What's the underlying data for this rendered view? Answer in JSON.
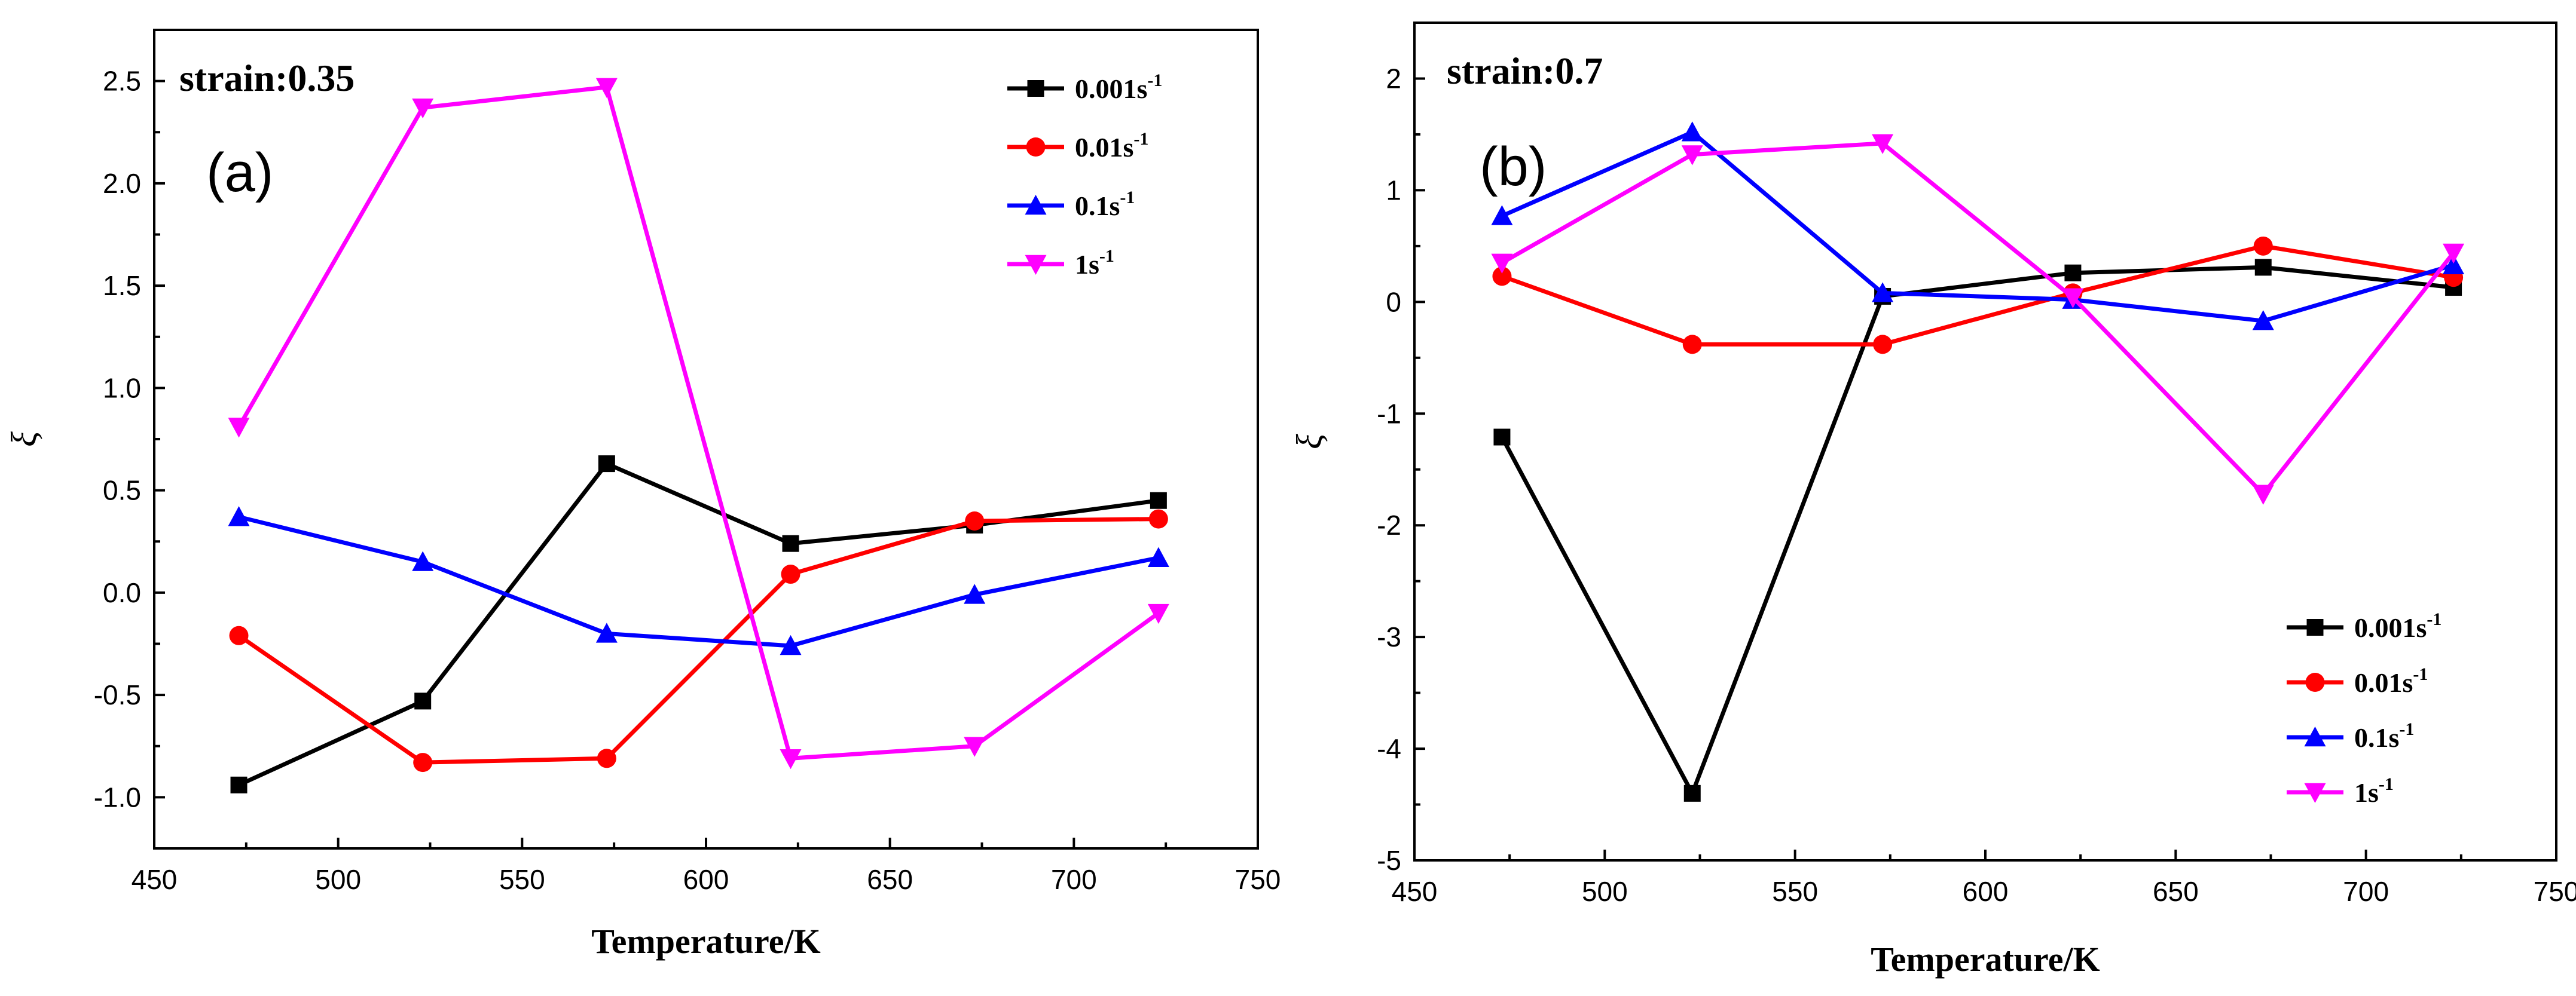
{
  "chart_data": [
    {
      "type": "line",
      "title": "strain:0.35",
      "panel_label": "(a)",
      "xlabel": "Temperature/K",
      "ylabel": "ξ",
      "xlim": [
        450,
        750
      ],
      "ylim": [
        -1.25,
        2.75
      ],
      "xticks": [
        450,
        500,
        550,
        600,
        650,
        700,
        750
      ],
      "yticks": [
        -1.0,
        -0.5,
        0.0,
        0.5,
        1.0,
        1.5,
        2.0,
        2.5
      ],
      "ytick_labels": [
        "-1.0",
        "-0.5",
        "0.0",
        "0.5",
        "1.0",
        "1.5",
        "2.0",
        "2.5"
      ],
      "legend_position": "top-right",
      "x": [
        473,
        523,
        573,
        623,
        673,
        723
      ],
      "series": [
        {
          "name": "0.001s",
          "sup": "-1",
          "color": "#000000",
          "marker": "square",
          "values": [
            -0.94,
            -0.53,
            0.63,
            0.24,
            0.33,
            0.45
          ]
        },
        {
          "name": "0.01s",
          "sup": "-1",
          "color": "#ff0000",
          "marker": "circle",
          "values": [
            -0.21,
            -0.83,
            -0.81,
            0.09,
            0.35,
            0.36
          ]
        },
        {
          "name": "0.1s",
          "sup": "-1",
          "color": "#0000ff",
          "marker": "triangle-up",
          "values": [
            0.37,
            0.15,
            -0.2,
            -0.26,
            -0.01,
            0.17
          ]
        },
        {
          "name": "1s",
          "sup": "-1",
          "color": "#ff00ff",
          "marker": "triangle-down",
          "values": [
            0.81,
            2.37,
            2.47,
            -0.81,
            -0.75,
            -0.1
          ]
        }
      ]
    },
    {
      "type": "line",
      "title": "strain:0.7",
      "panel_label": "(b)",
      "xlabel": "Temperature/K",
      "ylabel": "ξ",
      "xlim": [
        450,
        750
      ],
      "ylim": [
        -5,
        2.5
      ],
      "xticks": [
        450,
        500,
        550,
        600,
        650,
        700,
        750
      ],
      "yticks": [
        -5,
        -4,
        -3,
        -2,
        -1,
        0,
        1,
        2
      ],
      "ytick_labels": [
        "-5",
        "-4",
        "-3",
        "-2",
        "-1",
        "0",
        "1",
        "2"
      ],
      "legend_position": "bottom-right",
      "x": [
        473,
        523,
        573,
        623,
        673,
        723
      ],
      "series": [
        {
          "name": "0.001s",
          "sup": "-1",
          "color": "#000000",
          "marker": "square",
          "values": [
            -1.21,
            -4.4,
            0.05,
            0.26,
            0.31,
            0.13
          ]
        },
        {
          "name": "0.01s",
          "sup": "-1",
          "color": "#ff0000",
          "marker": "circle",
          "values": [
            0.23,
            -0.38,
            -0.38,
            0.08,
            0.5,
            0.22
          ]
        },
        {
          "name": "0.1s",
          "sup": "-1",
          "color": "#0000ff",
          "marker": "triangle-up",
          "values": [
            0.77,
            1.52,
            0.08,
            0.02,
            -0.17,
            0.33
          ]
        },
        {
          "name": "1s",
          "sup": "-1",
          "color": "#ff00ff",
          "marker": "triangle-down",
          "values": [
            0.35,
            1.32,
            1.42,
            0.04,
            -1.72,
            0.44
          ]
        }
      ]
    }
  ]
}
